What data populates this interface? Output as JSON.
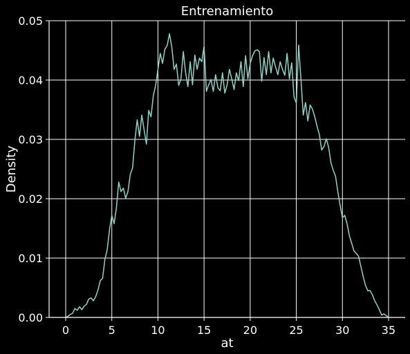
{
  "chart_data": {
    "type": "line",
    "title": "Entrenamiento",
    "xlabel": "at",
    "ylabel": "Density",
    "xlim": [
      -1.8,
      36.8
    ],
    "ylim": [
      0,
      0.05
    ],
    "xticks": [
      0,
      5,
      10,
      15,
      20,
      25,
      30,
      35
    ],
    "yticks": [
      0.0,
      0.01,
      0.02,
      0.03,
      0.04,
      0.05
    ],
    "xtick_labels": [
      "0",
      "5",
      "10",
      "15",
      "20",
      "25",
      "30",
      "35"
    ],
    "ytick_labels": [
      "0.00",
      "0.01",
      "0.02",
      "0.03",
      "0.04",
      "0.05"
    ],
    "grid": true,
    "series": [
      {
        "color": "#8dd3c7",
        "x": [
          0,
          0.25,
          0.5,
          0.75,
          1,
          1.25,
          1.5,
          1.75,
          2,
          2.25,
          2.5,
          2.75,
          3,
          3.25,
          3.5,
          3.75,
          4,
          4.25,
          4.5,
          4.75,
          5,
          5.25,
          5.5,
          5.75,
          6,
          6.25,
          6.5,
          6.75,
          7,
          7.25,
          7.5,
          7.75,
          8,
          8.25,
          8.5,
          8.75,
          9,
          9.25,
          9.5,
          9.75,
          10,
          10.25,
          10.5,
          10.75,
          11,
          11.25,
          11.5,
          11.75,
          12,
          12.25,
          12.5,
          12.75,
          13,
          13.25,
          13.5,
          13.75,
          14,
          14.25,
          14.5,
          14.75,
          15,
          15.25,
          15.5,
          15.75,
          16,
          16.25,
          16.5,
          16.75,
          17,
          17.25,
          17.5,
          17.75,
          18,
          18.25,
          18.5,
          18.75,
          19,
          19.25,
          19.5,
          19.75,
          20,
          20.25,
          20.5,
          20.75,
          21,
          21.25,
          21.5,
          21.75,
          22,
          22.25,
          22.5,
          22.75,
          23,
          23.25,
          23.5,
          23.75,
          24,
          24.25,
          24.5,
          24.75,
          25,
          25.25,
          25.5,
          25.75,
          26,
          26.25,
          26.5,
          26.75,
          27,
          27.25,
          27.5,
          27.75,
          28,
          28.25,
          28.5,
          28.75,
          29,
          29.25,
          29.5,
          29.75,
          30,
          30.25,
          30.5,
          30.75,
          31,
          31.25,
          31.5,
          31.75,
          32,
          32.25,
          32.5,
          32.75,
          33,
          33.25,
          33.5,
          33.75,
          34,
          34.25,
          34.5,
          34.75,
          35
        ],
        "y": [
          0.0,
          0.0002,
          0.0005,
          0.0007,
          0.0015,
          0.0012,
          0.0018,
          0.0013,
          0.0019,
          0.0022,
          0.0031,
          0.0033,
          0.0028,
          0.0035,
          0.0046,
          0.0062,
          0.0066,
          0.0098,
          0.0114,
          0.0148,
          0.0172,
          0.0158,
          0.0185,
          0.0228,
          0.0212,
          0.0218,
          0.0201,
          0.0212,
          0.0241,
          0.0252,
          0.0298,
          0.0333,
          0.0305,
          0.0341,
          0.0316,
          0.0292,
          0.0349,
          0.0338,
          0.0374,
          0.0391,
          0.0418,
          0.0445,
          0.0428,
          0.0452,
          0.0458,
          0.0478,
          0.0456,
          0.0418,
          0.0427,
          0.0391,
          0.0402,
          0.0448,
          0.0412,
          0.0389,
          0.0431,
          0.0392,
          0.0442,
          0.0418,
          0.0437,
          0.0431,
          0.0457,
          0.0381,
          0.0392,
          0.0401,
          0.0381,
          0.0409,
          0.0387,
          0.0382,
          0.0412,
          0.0378,
          0.0392,
          0.0418,
          0.0402,
          0.0384,
          0.0412,
          0.0399,
          0.0431,
          0.0389,
          0.0441,
          0.0402,
          0.0428,
          0.0441,
          0.0449,
          0.0451,
          0.0448,
          0.0398,
          0.0438,
          0.0409,
          0.0448,
          0.0412,
          0.0437,
          0.0422,
          0.0409,
          0.0431,
          0.0418,
          0.0408,
          0.0445,
          0.0402,
          0.0429,
          0.0372,
          0.0361,
          0.0459,
          0.0402,
          0.0341,
          0.0362,
          0.0331,
          0.0358,
          0.0351,
          0.0338,
          0.0322,
          0.0308,
          0.0282,
          0.0288,
          0.0301,
          0.0287,
          0.0261,
          0.0248,
          0.0238,
          0.0212,
          0.0189,
          0.0168,
          0.0172,
          0.0158,
          0.0138,
          0.0125,
          0.0112,
          0.0108,
          0.0103,
          0.0086,
          0.0069,
          0.0054,
          0.0045,
          0.0045,
          0.0038,
          0.0028,
          0.0021,
          0.0013,
          0.0004,
          0.0006,
          0.0003,
          0.0
        ]
      }
    ]
  }
}
